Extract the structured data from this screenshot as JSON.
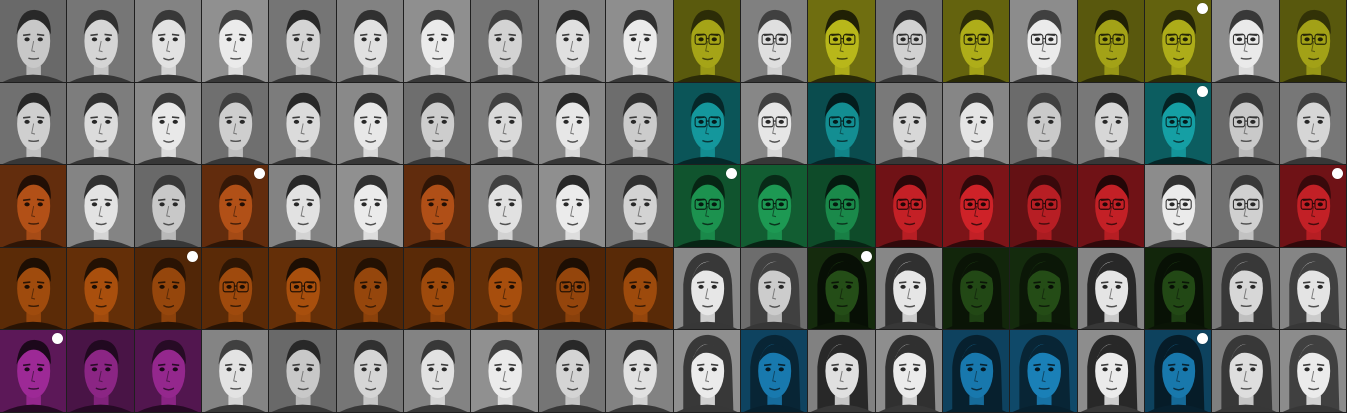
{
  "grid": {
    "rows": 5,
    "cols": 20
  },
  "colors": {
    "yellow": "#c8c71c",
    "teal": "#17b2b8",
    "orange": "#d45f1b",
    "green": "#1fa65a",
    "red": "#e0242b",
    "dark_green": "#2a5a1a",
    "dark_orange": "#b8560e",
    "magenta": "#b02ea8",
    "blue": "#1d92d2"
  },
  "tints": [
    [
      null,
      null,
      null,
      null,
      null,
      null,
      null,
      null,
      null,
      null,
      "yellow",
      null,
      "yellow",
      null,
      "yellow",
      null,
      "yellow",
      "yellow",
      null,
      "yellow"
    ],
    [
      null,
      null,
      null,
      null,
      null,
      null,
      null,
      null,
      null,
      null,
      "teal",
      null,
      "teal",
      null,
      null,
      null,
      null,
      "teal",
      null,
      null
    ],
    [
      "orange",
      null,
      null,
      "orange",
      null,
      null,
      "orange",
      null,
      null,
      null,
      "green",
      "green",
      "green",
      "red",
      "red",
      "red",
      "red",
      null,
      null,
      "red"
    ],
    [
      "dark_orange",
      "dark_orange",
      "dark_orange",
      "dark_orange",
      "dark_orange",
      "dark_orange",
      "dark_orange",
      "dark_orange",
      "dark_orange",
      "dark_orange",
      null,
      null,
      "dark_green",
      null,
      "dark_green",
      "dark_green",
      null,
      "dark_green",
      null,
      null
    ],
    [
      "magenta",
      "magenta",
      "magenta",
      null,
      null,
      null,
      null,
      null,
      null,
      null,
      null,
      "blue",
      null,
      null,
      "blue",
      "blue",
      null,
      "blue",
      null,
      null
    ]
  ],
  "markers": [
    [
      0,
      17
    ],
    [
      1,
      17
    ],
    [
      2,
      3
    ],
    [
      2,
      10
    ],
    [
      2,
      19
    ],
    [
      3,
      2
    ],
    [
      3,
      12
    ],
    [
      4,
      0
    ],
    [
      4,
      17
    ]
  ],
  "faces": {
    "glasses": [
      [
        0,
        10
      ],
      [
        0,
        11
      ],
      [
        0,
        12
      ],
      [
        0,
        13
      ],
      [
        0,
        14
      ],
      [
        0,
        15
      ],
      [
        0,
        16
      ],
      [
        0,
        17
      ],
      [
        0,
        18
      ],
      [
        0,
        19
      ],
      [
        1,
        10
      ],
      [
        1,
        11
      ],
      [
        1,
        12
      ],
      [
        1,
        17
      ],
      [
        1,
        18
      ],
      [
        2,
        10
      ],
      [
        2,
        11
      ],
      [
        2,
        12
      ],
      [
        2,
        13
      ],
      [
        2,
        14
      ],
      [
        2,
        15
      ],
      [
        2,
        16
      ],
      [
        2,
        17
      ],
      [
        2,
        18
      ],
      [
        2,
        19
      ],
      [
        3,
        3
      ],
      [
        3,
        4
      ],
      [
        3,
        8
      ]
    ],
    "long_hair": [
      [
        3,
        10
      ],
      [
        3,
        11
      ],
      [
        3,
        12
      ],
      [
        3,
        13
      ],
      [
        3,
        14
      ],
      [
        3,
        15
      ],
      [
        3,
        16
      ],
      [
        3,
        17
      ],
      [
        3,
        18
      ],
      [
        3,
        19
      ],
      [
        4,
        10
      ],
      [
        4,
        11
      ],
      [
        4,
        12
      ],
      [
        4,
        13
      ],
      [
        4,
        14
      ],
      [
        4,
        15
      ],
      [
        4,
        16
      ],
      [
        4,
        17
      ],
      [
        4,
        18
      ],
      [
        4,
        19
      ]
    ]
  }
}
